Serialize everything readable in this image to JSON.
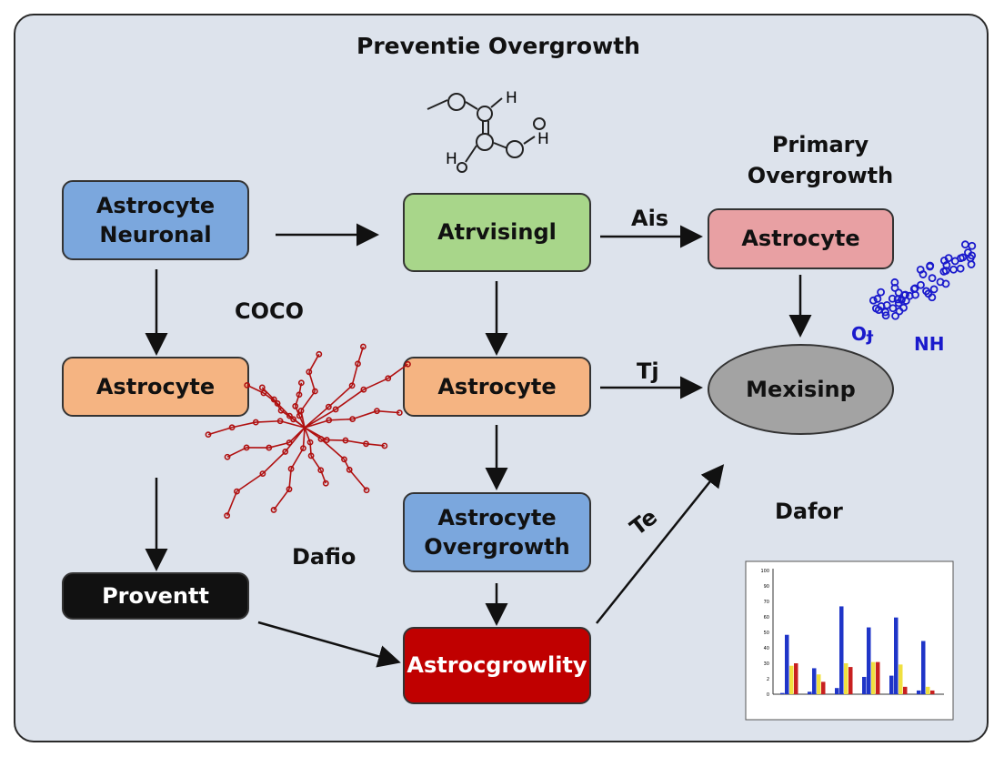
{
  "title": "Preventie Overgrowth",
  "colors": {
    "blue": "#7ba7dd",
    "green": "#a8d68a",
    "pink": "#e8a0a3",
    "orange": "#f5b482",
    "gray": "#a3a3a3",
    "black": "#111111",
    "red": "#c00000",
    "background": "#dde3ec"
  },
  "nodes": {
    "astrocyte_neuronal": "Astrocyte\nNeuronal",
    "atrvisingl": "Atrvisingl",
    "astrocyte_pink": "Astrocyte",
    "astrocyte_orange_left": "Astrocyte",
    "astrocyte_orange_mid": "Astrocyte",
    "mexisinp": "Mexisinp",
    "astrocyte_overgrowth": "Astrocyte\nOvergrowth",
    "proventt": "Proventt",
    "astrocgrowlity": "Astrocgrowlity"
  },
  "labels": {
    "primary_overgrowth": "Primary\nOvergrowth",
    "ais": "Ais",
    "tj": "Tj",
    "coco": "COCO",
    "dafio": "Dafio",
    "dafor": "Dafor",
    "te": "Te",
    "mol_h1": "H",
    "mol_h2": "H",
    "mol_h3": "H",
    "mol_o": "Oɟ",
    "mol_nh": "NH"
  },
  "inset_chart": {
    "type": "bar",
    "y_ticks": [
      "100",
      "90",
      "70",
      "60",
      "50",
      "40",
      "30",
      "2",
      "0"
    ],
    "series_colors": [
      "#1f35c8",
      "#f0e040",
      "#c82020"
    ]
  }
}
